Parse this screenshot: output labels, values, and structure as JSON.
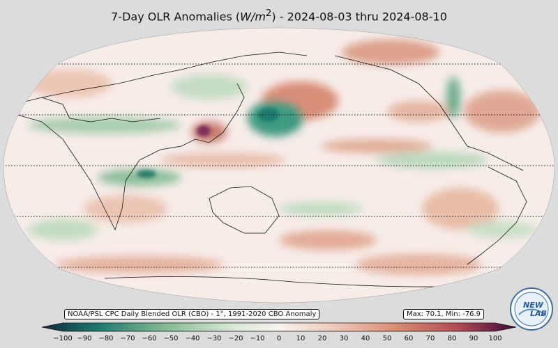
{
  "title": {
    "prefix": "7-Day OLR Anomalies (",
    "unit_italic": "W/m",
    "unit_sup": "2",
    "suffix": ") - 2024-08-03 thru 2024-08-10"
  },
  "source_label": "NOAA/PSL CPC Daily Blended OLR (CBO) - 1°, 1991-2020 CBO Anomaly",
  "stats_label": "Max: 70.1,  Min: -76.9",
  "colorbar": {
    "ticks": [
      "−100",
      "−90",
      "−80",
      "−70",
      "−60",
      "−50",
      "−40",
      "−30",
      "−20",
      "−10",
      "0",
      "10",
      "20",
      "30",
      "40",
      "50",
      "60",
      "70",
      "80",
      "90",
      "100"
    ],
    "min": -100,
    "max": 100,
    "colors": {
      "neg_extreme": "#0b2a3b",
      "neg_strong": "#1f7a6e",
      "neg_mid": "#7fb58f",
      "neg_light": "#d9e8d6",
      "neutral": "#f7f3ef",
      "pos_light": "#f0d0c2",
      "pos_mid": "#d88a70",
      "pos_strong": "#b04a55",
      "pos_extreme": "#3a0a3a"
    }
  },
  "logo": {
    "text_top": "NEW",
    "text_bottom": "LAB"
  }
}
